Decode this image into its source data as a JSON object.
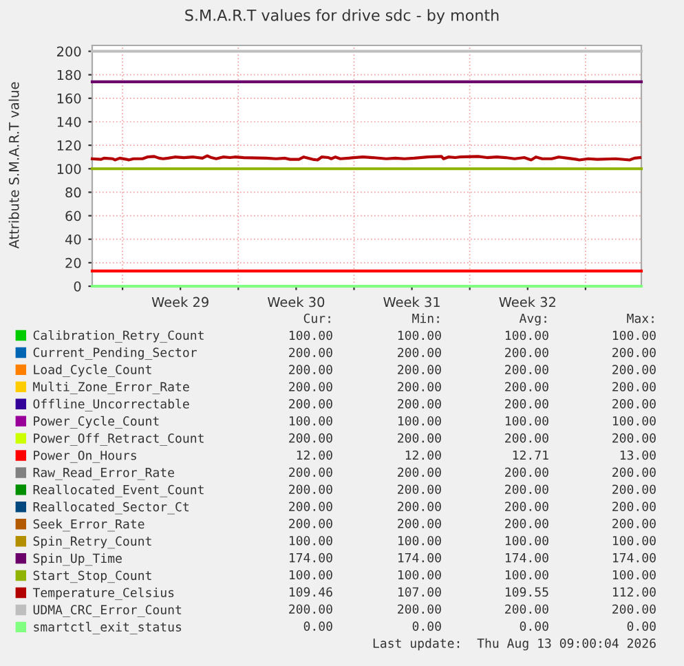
{
  "chart_data": {
    "type": "line",
    "title": "S.M.A.R.T values for drive sdc - by month",
    "ylabel": "Attribute S.M.A.R.T value",
    "xlim": [
      "2026-07-11T04:00",
      "2026-08-13T09:00"
    ],
    "xticks": [
      {
        "value": "2026-07-13",
        "label": null
      },
      {
        "value": "2026-07-16T12:00",
        "label": "Week 29"
      },
      {
        "value": "2026-07-20",
        "label": null
      },
      {
        "value": "2026-07-23T12:00",
        "label": "Week 30"
      },
      {
        "value": "2026-07-27",
        "label": null
      },
      {
        "value": "2026-07-30T12:00",
        "label": "Week 31"
      },
      {
        "value": "2026-08-03",
        "label": null
      },
      {
        "value": "2026-08-06T12:00",
        "label": "Week 32"
      },
      {
        "value": "2026-08-10",
        "label": null
      }
    ],
    "ylim": [
      0,
      205
    ],
    "yticks": [
      0,
      20,
      40,
      60,
      80,
      100,
      120,
      140,
      160,
      180,
      200
    ],
    "grid": true,
    "legend": "bottom",
    "line_style": "solid",
    "marker": "none",
    "series": [
      {
        "name": "Calibration_Retry_Count",
        "color": "#00cc00",
        "values": [
          null
        ]
      },
      {
        "name": "Current_Pending_Sector",
        "color": "#0066b3",
        "values": [
          null
        ]
      },
      {
        "name": "Load_Cycle_Count",
        "color": "#ff8000",
        "values": [
          null
        ]
      },
      {
        "name": "Multi_Zone_Error_Rate",
        "color": "#ffcc00",
        "values": [
          null
        ]
      },
      {
        "name": "Offline_Uncorrectable",
        "color": "#330099",
        "values": [
          null
        ]
      },
      {
        "name": "Power_Cycle_Count",
        "color": "#990099",
        "values": [
          null
        ]
      },
      {
        "name": "Power_Off_Retract_Count",
        "color": "#ccff00",
        "values": [
          null
        ]
      },
      {
        "name": "Power_On_Hours",
        "color": "#ff0000",
        "x": [
          "2026-07-11T04:00",
          "2026-08-13T09:00"
        ],
        "values": [
          13,
          13
        ]
      },
      {
        "name": "Raw_Read_Error_Rate",
        "color": "#808080",
        "values": [
          null
        ]
      },
      {
        "name": "Reallocated_Event_Count",
        "color": "#008f00",
        "values": [
          null
        ]
      },
      {
        "name": "Reallocated_Sector_Ct",
        "color": "#00487d",
        "values": [
          null
        ]
      },
      {
        "name": "Seek_Error_Rate",
        "color": "#b35a00",
        "values": [
          null
        ]
      },
      {
        "name": "Spin_Retry_Count",
        "color": "#b38f00",
        "values": [
          null
        ]
      },
      {
        "name": "Spin_Up_Time",
        "color": "#6b006b",
        "x": [
          "2026-07-11T04:00",
          "2026-08-13T09:00"
        ],
        "values": [
          174,
          174
        ]
      },
      {
        "name": "Start_Stop_Count",
        "color": "#8fb300",
        "x": [
          "2026-07-11T04:00",
          "2026-08-13T09:00"
        ],
        "values": [
          100,
          100
        ]
      },
      {
        "name": "Temperature_Celsius",
        "color": "#b30000",
        "x": [
          "2026-07-11T04:00",
          "2026-07-11T17:00",
          "2026-07-11T21:00",
          "2026-07-12T10:00",
          "2026-07-12T13:00",
          "2026-07-12T20:00",
          "2026-07-13T06:00",
          "2026-07-13T09:00",
          "2026-07-13T16:00",
          "2026-07-14T05:00",
          "2026-07-14T12:00",
          "2026-07-14T22:00",
          "2026-07-15T05:00",
          "2026-07-15T11:00",
          "2026-07-15T18:00",
          "2026-07-16T04:00",
          "2026-07-16T17:00",
          "2026-07-17T07:00",
          "2026-07-17T20:00",
          "2026-07-18T03:00",
          "2026-07-18T09:00",
          "2026-07-18T16:00",
          "2026-07-19T02:00",
          "2026-07-19T12:00",
          "2026-07-19T19:00",
          "2026-07-20T08:00",
          "2026-07-21T17:00",
          "2026-07-22T07:00",
          "2026-07-22T20:00",
          "2026-07-23T03:00",
          "2026-07-23T16:00",
          "2026-07-23T23:00",
          "2026-07-24T12:00",
          "2026-07-24T19:00",
          "2026-07-25T01:00",
          "2026-07-25T11:00",
          "2026-07-25T15:00",
          "2026-07-25T21:00",
          "2026-07-26T04:00",
          "2026-07-27T13:00",
          "2026-07-28T03:00",
          "2026-07-28T23:00",
          "2026-07-29T12:00",
          "2026-07-30T01:00",
          "2026-07-30T15:00",
          "2026-07-31T11:00",
          "2026-08-01T07:00",
          "2026-08-01T10:00",
          "2026-08-01T17:00",
          "2026-08-02T03:00",
          "2026-08-02T09:00",
          "2026-08-03T12:00",
          "2026-08-04T01:00",
          "2026-08-04T15:00",
          "2026-08-05T04:00",
          "2026-08-05T17:00",
          "2026-08-06T07:00",
          "2026-08-06T17:00",
          "2026-08-07T00:00",
          "2026-08-07T09:00",
          "2026-08-07T23:00",
          "2026-08-08T09:00",
          "2026-08-08T22:00",
          "2026-08-09T11:00",
          "2026-08-09T15:00",
          "2026-08-10T04:00",
          "2026-08-10T17:00",
          "2026-08-11T20:00",
          "2026-08-12T16:00",
          "2026-08-12T23:00",
          "2026-08-13T07:00"
        ],
        "values": [
          108.5,
          108,
          109,
          108.5,
          107.5,
          109,
          108,
          107.5,
          108.5,
          108.5,
          110,
          110.5,
          109,
          108.5,
          109,
          110,
          109.5,
          110,
          109,
          111,
          109.5,
          108.5,
          110,
          109.5,
          110,
          109.5,
          109,
          108.5,
          109,
          108,
          108,
          110,
          108,
          107.5,
          110,
          109.5,
          108.5,
          110,
          108.5,
          110,
          109.5,
          108.5,
          109,
          108.5,
          109,
          110,
          110.5,
          108.5,
          110,
          109.5,
          110,
          110.5,
          109.5,
          110,
          109.5,
          108.5,
          109.5,
          107.5,
          110,
          108.5,
          108.5,
          110,
          109,
          108,
          107.5,
          108.5,
          108,
          108.5,
          107.5,
          109,
          109.5
        ]
      },
      {
        "name": "UDMA_CRC_Error_Count",
        "color": "#bebebe",
        "x": [
          "2026-07-11T04:00",
          "2026-08-13T09:00"
        ],
        "values": [
          200,
          200
        ]
      },
      {
        "name": "smartctl_exit_status",
        "color": "#80ff80",
        "x": [
          "2026-07-11T04:00",
          "2026-08-13T09:00"
        ],
        "values": [
          0,
          0
        ]
      }
    ],
    "annotations": [
      "Cur:",
      "Min:",
      "Avg:",
      "Max:",
      "100.00",
      "100.00",
      "100.00",
      "100.00",
      "200.00",
      "200.00",
      "200.00",
      "200.00",
      "200.00",
      "200.00",
      "200.00",
      "200.00",
      "200.00",
      "200.00",
      "200.00",
      "200.00",
      "200.00",
      "200.00",
      "200.00",
      "200.00",
      "100.00",
      "100.00",
      "100.00",
      "100.00",
      "200.00",
      "200.00",
      "200.00",
      "200.00",
      "12.00",
      "12.00",
      "12.71",
      "13.00",
      "200.00",
      "200.00",
      "200.00",
      "200.00",
      "200.00",
      "200.00",
      "200.00",
      "200.00",
      "200.00",
      "200.00",
      "200.00",
      "200.00",
      "200.00",
      "200.00",
      "200.00",
      "200.00",
      "100.00",
      "100.00",
      "100.00",
      "100.00",
      "174.00",
      "174.00",
      "174.00",
      "174.00",
      "100.00",
      "100.00",
      "100.00",
      "100.00",
      "109.46",
      "107.00",
      "109.55",
      "112.00",
      "200.00",
      "200.00",
      "200.00",
      "200.00",
      "0.00",
      "0.00",
      "0.00",
      "0.00",
      "Last update:  Thu Aug 13 09:00:04 2026"
    ]
  }
}
